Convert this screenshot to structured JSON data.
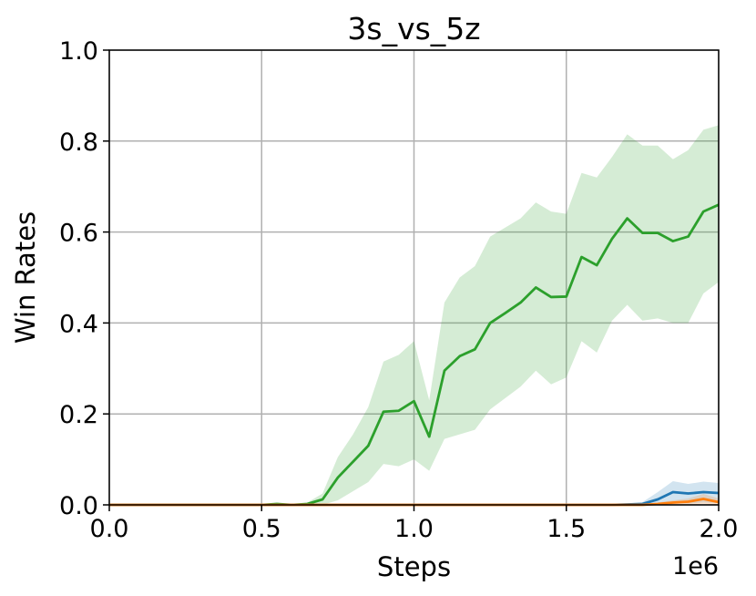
{
  "chart_data": {
    "type": "line",
    "title": "3s_vs_5z",
    "xlabel": "Steps",
    "ylabel": "Win Rates",
    "x_offset_label": "1e6",
    "xlim": [
      0.0,
      2.0
    ],
    "ylim": [
      0.0,
      1.0
    ],
    "x_ticks": [
      "0.0",
      "0.5",
      "1.0",
      "1.5",
      "2.0"
    ],
    "y_ticks": [
      "0.0",
      "0.2",
      "0.4",
      "0.6",
      "0.8",
      "1.0"
    ],
    "grid": true,
    "series": [
      {
        "color": "#2ca02c",
        "band_color": "#2ca02c",
        "x": [
          0.0,
          0.5,
          0.55,
          0.6,
          0.65,
          0.7,
          0.75,
          0.8,
          0.85,
          0.9,
          0.95,
          1.0,
          1.05,
          1.1,
          1.15,
          1.2,
          1.25,
          1.3,
          1.35,
          1.4,
          1.45,
          1.5,
          1.55,
          1.6,
          1.65,
          1.7,
          1.75,
          1.8,
          1.85,
          1.9,
          1.95,
          2.0
        ],
        "y": [
          0.0,
          0.0,
          0.002,
          0.0,
          0.002,
          0.012,
          0.06,
          0.095,
          0.13,
          0.205,
          0.207,
          0.228,
          0.15,
          0.295,
          0.327,
          0.342,
          0.4,
          0.422,
          0.445,
          0.478,
          0.457,
          0.458,
          0.545,
          0.527,
          0.585,
          0.63,
          0.598,
          0.598,
          0.58,
          0.59,
          0.645,
          0.66
        ],
        "y_low": [
          0.0,
          0.0,
          0.0,
          0.0,
          0.0,
          0.0,
          0.01,
          0.03,
          0.05,
          0.09,
          0.085,
          0.1,
          0.075,
          0.145,
          0.155,
          0.165,
          0.21,
          0.235,
          0.26,
          0.295,
          0.265,
          0.28,
          0.36,
          0.335,
          0.405,
          0.44,
          0.405,
          0.41,
          0.4,
          0.4,
          0.465,
          0.49
        ],
        "y_high": [
          0.0,
          0.0,
          0.005,
          0.0,
          0.005,
          0.025,
          0.105,
          0.155,
          0.215,
          0.315,
          0.33,
          0.36,
          0.23,
          0.445,
          0.5,
          0.525,
          0.59,
          0.61,
          0.63,
          0.665,
          0.645,
          0.64,
          0.73,
          0.72,
          0.765,
          0.815,
          0.79,
          0.79,
          0.76,
          0.78,
          0.825,
          0.835
        ]
      },
      {
        "color": "#1f77b4",
        "band_color": "#1f77b4",
        "x": [
          0.0,
          1.65,
          1.7,
          1.75,
          1.8,
          1.85,
          1.9,
          1.95,
          2.0
        ],
        "y": [
          0.0,
          0.0,
          0.001,
          0.002,
          0.012,
          0.028,
          0.025,
          0.028,
          0.026
        ],
        "y_low": [
          0.0,
          0.0,
          0.0,
          0.0,
          0.0,
          0.005,
          0.003,
          0.005,
          0.004
        ],
        "y_high": [
          0.0,
          0.0,
          0.003,
          0.006,
          0.028,
          0.052,
          0.046,
          0.051,
          0.048
        ]
      },
      {
        "color": "#ff7f0e",
        "band_color": "#ff7f0e",
        "x": [
          0.0,
          1.75,
          1.8,
          1.85,
          1.9,
          1.95,
          2.0
        ],
        "y": [
          0.0,
          0.0,
          0.002,
          0.005,
          0.007,
          0.013,
          0.006
        ],
        "y_low": [
          0.0,
          0.0,
          0.0,
          0.0,
          0.0,
          0.002,
          0.0
        ],
        "y_high": [
          0.0,
          0.0,
          0.005,
          0.01,
          0.014,
          0.024,
          0.014
        ]
      }
    ]
  }
}
